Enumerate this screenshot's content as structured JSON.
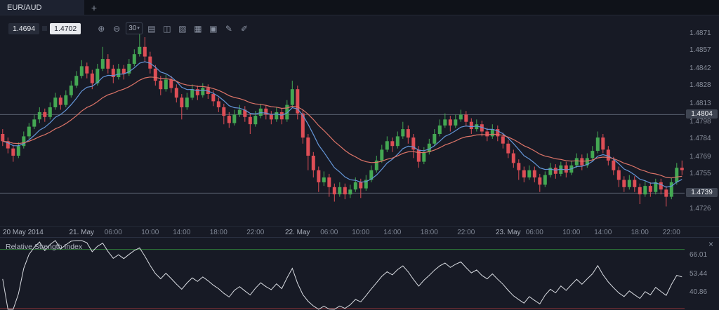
{
  "tab_bar": {
    "active_tab": "EUR/AUD",
    "new_tab_label": "+"
  },
  "quote": {
    "bid": "1.4694",
    "ask": "1.4702"
  },
  "toolbar": {
    "caret": "▾",
    "icons": [
      {
        "name": "zoom-in-icon",
        "glyph": "⊕"
      },
      {
        "name": "zoom-out-icon",
        "glyph": "⊖"
      },
      {
        "name": "timeframe-30-button",
        "glyph": "30",
        "boxed": true
      },
      {
        "name": "bar-chart-style-icon",
        "glyph": "▤"
      },
      {
        "name": "candlestick-style-icon",
        "glyph": "◫"
      },
      {
        "name": "line-chart-style-icon",
        "glyph": "▨"
      },
      {
        "name": "indicators-icon",
        "glyph": "▦"
      },
      {
        "name": "snapshot-icon",
        "glyph": "▣"
      },
      {
        "name": "draw-icon",
        "glyph": "✎"
      },
      {
        "name": "marker-icon",
        "glyph": "✐"
      }
    ]
  },
  "chart_data": {
    "type": "candlestick",
    "symbol": "EUR/AUD",
    "timeframe_minutes": 30,
    "price_range": {
      "top": 1.4886,
      "bottom": 1.4712
    },
    "price_ticks": [
      1.4871,
      1.4857,
      1.4842,
      1.4828,
      1.4813,
      1.4798,
      1.4784,
      1.4769,
      1.4755,
      1.4726
    ],
    "price_lines": [
      1.4804,
      1.4739
    ],
    "colors": {
      "up": "#44a853",
      "down": "#de4e56",
      "level_line": "#5a6270"
    },
    "indicators": {
      "ma_fast": {
        "period": 8,
        "color": "#6496d8"
      },
      "ma_slow": {
        "period": 20,
        "color": "#dd7468"
      }
    },
    "time_ticks": [
      {
        "label": "20 May 2014",
        "i": 0,
        "major": true
      },
      {
        "label": "21. May",
        "i": 15,
        "major": true
      },
      {
        "label": "06:00",
        "i": 21
      },
      {
        "label": "10:00",
        "i": 28
      },
      {
        "label": "14:00",
        "i": 34
      },
      {
        "label": "18:00",
        "i": 41
      },
      {
        "label": "22:00",
        "i": 48
      },
      {
        "label": "22. May",
        "i": 56,
        "major": true
      },
      {
        "label": "06:00",
        "i": 62
      },
      {
        "label": "10:00",
        "i": 68
      },
      {
        "label": "14:00",
        "i": 74
      },
      {
        "label": "18:00",
        "i": 81
      },
      {
        "label": "22:00",
        "i": 88
      },
      {
        "label": "23. May",
        "i": 96,
        "major": true
      },
      {
        "label": "06:00",
        "i": 101
      },
      {
        "label": "10:00",
        "i": 108
      },
      {
        "label": "14:00",
        "i": 114
      },
      {
        "label": "18:00",
        "i": 121
      },
      {
        "label": "22:00",
        "i": 127
      }
    ],
    "candles": [
      [
        1.4788,
        1.4792,
        1.4778,
        1.4782
      ],
      [
        1.4782,
        1.4785,
        1.4772,
        1.4776
      ],
      [
        1.4776,
        1.4779,
        1.4765,
        1.477
      ],
      [
        1.477,
        1.4781,
        1.4768,
        1.4778
      ],
      [
        1.4778,
        1.479,
        1.4776,
        1.4786
      ],
      [
        1.4786,
        1.4797,
        1.4784,
        1.4794
      ],
      [
        1.4794,
        1.4804,
        1.4792,
        1.48
      ],
      [
        1.48,
        1.481,
        1.4797,
        1.4806
      ],
      [
        1.4806,
        1.4809,
        1.4798,
        1.4802
      ],
      [
        1.4802,
        1.4814,
        1.48,
        1.481
      ],
      [
        1.481,
        1.4822,
        1.4808,
        1.4818
      ],
      [
        1.4818,
        1.482,
        1.4808,
        1.4812
      ],
      [
        1.4812,
        1.4824,
        1.481,
        1.482
      ],
      [
        1.482,
        1.4832,
        1.4818,
        1.4828
      ],
      [
        1.4828,
        1.484,
        1.4826,
        1.4836
      ],
      [
        1.4836,
        1.4849,
        1.4834,
        1.4844
      ],
      [
        1.4844,
        1.4847,
        1.4834,
        1.4838
      ],
      [
        1.4838,
        1.4841,
        1.4825,
        1.483
      ],
      [
        1.483,
        1.4846,
        1.4828,
        1.4842
      ],
      [
        1.4842,
        1.486,
        1.484,
        1.485
      ],
      [
        1.485,
        1.4854,
        1.4838,
        1.4842
      ],
      [
        1.4842,
        1.4845,
        1.483,
        1.4835
      ],
      [
        1.4835,
        1.4846,
        1.4833,
        1.4842
      ],
      [
        1.4842,
        1.4845,
        1.4833,
        1.4838
      ],
      [
        1.4838,
        1.485,
        1.4836,
        1.4846
      ],
      [
        1.4846,
        1.4858,
        1.4844,
        1.4854
      ],
      [
        1.4854,
        1.4871,
        1.4852,
        1.486
      ],
      [
        1.486,
        1.4868,
        1.4848,
        1.4852
      ],
      [
        1.4852,
        1.4856,
        1.4838,
        1.4842
      ],
      [
        1.4842,
        1.4845,
        1.4828,
        1.4832
      ],
      [
        1.4832,
        1.4836,
        1.482,
        1.4825
      ],
      [
        1.4825,
        1.4837,
        1.4823,
        1.4833
      ],
      [
        1.4833,
        1.4836,
        1.4822,
        1.4826
      ],
      [
        1.4826,
        1.4829,
        1.4814,
        1.4818
      ],
      [
        1.4818,
        1.4821,
        1.48,
        1.481
      ],
      [
        1.481,
        1.4822,
        1.4808,
        1.4818
      ],
      [
        1.4818,
        1.4829,
        1.4816,
        1.4825
      ],
      [
        1.4825,
        1.4828,
        1.4816,
        1.482
      ],
      [
        1.482,
        1.483,
        1.4818,
        1.4826
      ],
      [
        1.4826,
        1.4829,
        1.4817,
        1.4821
      ],
      [
        1.4821,
        1.4824,
        1.4811,
        1.4815
      ],
      [
        1.4815,
        1.4818,
        1.4806,
        1.481
      ],
      [
        1.481,
        1.4813,
        1.4796,
        1.4803
      ],
      [
        1.4803,
        1.4806,
        1.4793,
        1.4797
      ],
      [
        1.4797,
        1.4808,
        1.4795,
        1.4804
      ],
      [
        1.4804,
        1.4812,
        1.4802,
        1.4808
      ],
      [
        1.4808,
        1.4811,
        1.4798,
        1.4802
      ],
      [
        1.4802,
        1.4805,
        1.4788,
        1.4796
      ],
      [
        1.4796,
        1.4807,
        1.4794,
        1.4803
      ],
      [
        1.4803,
        1.4813,
        1.4801,
        1.4809
      ],
      [
        1.4809,
        1.4812,
        1.48,
        1.4804
      ],
      [
        1.4804,
        1.4807,
        1.4796,
        1.48
      ],
      [
        1.48,
        1.481,
        1.4798,
        1.4806
      ],
      [
        1.4806,
        1.4809,
        1.4796,
        1.48
      ],
      [
        1.48,
        1.4816,
        1.4798,
        1.4812
      ],
      [
        1.4812,
        1.4832,
        1.481,
        1.4825
      ],
      [
        1.4825,
        1.4828,
        1.48,
        1.4805
      ],
      [
        1.4805,
        1.4808,
        1.478,
        1.4785
      ],
      [
        1.4785,
        1.4788,
        1.4758,
        1.477
      ],
      [
        1.477,
        1.4773,
        1.4752,
        1.4758
      ],
      [
        1.4758,
        1.4761,
        1.474,
        1.4748
      ],
      [
        1.4748,
        1.4757,
        1.4745,
        1.4752
      ],
      [
        1.4752,
        1.4755,
        1.4736,
        1.4744
      ],
      [
        1.4744,
        1.4747,
        1.4732,
        1.4738
      ],
      [
        1.4738,
        1.4748,
        1.4736,
        1.4744
      ],
      [
        1.4744,
        1.4747,
        1.4734,
        1.4738
      ],
      [
        1.4738,
        1.4746,
        1.4735,
        1.4742
      ],
      [
        1.4742,
        1.4752,
        1.474,
        1.4748
      ],
      [
        1.4748,
        1.4751,
        1.4735,
        1.4743
      ],
      [
        1.4743,
        1.4754,
        1.4741,
        1.475
      ],
      [
        1.475,
        1.4762,
        1.4748,
        1.4758
      ],
      [
        1.4758,
        1.477,
        1.4756,
        1.4766
      ],
      [
        1.4766,
        1.4779,
        1.4764,
        1.4775
      ],
      [
        1.4775,
        1.4786,
        1.4773,
        1.4782
      ],
      [
        1.4782,
        1.4785,
        1.4773,
        1.4778
      ],
      [
        1.4778,
        1.479,
        1.4776,
        1.4786
      ],
      [
        1.4786,
        1.4798,
        1.4784,
        1.4792
      ],
      [
        1.4792,
        1.4795,
        1.478,
        1.4785
      ],
      [
        1.4785,
        1.4788,
        1.4768,
        1.4775
      ],
      [
        1.4775,
        1.4778,
        1.476,
        1.4765
      ],
      [
        1.4765,
        1.4777,
        1.4763,
        1.4773
      ],
      [
        1.4773,
        1.4784,
        1.4771,
        1.478
      ],
      [
        1.478,
        1.4792,
        1.4778,
        1.4788
      ],
      [
        1.4788,
        1.48,
        1.4786,
        1.4795
      ],
      [
        1.4795,
        1.4805,
        1.4793,
        1.48
      ],
      [
        1.48,
        1.4803,
        1.479,
        1.4795
      ],
      [
        1.4795,
        1.4804,
        1.4793,
        1.48
      ],
      [
        1.48,
        1.4808,
        1.4798,
        1.4804
      ],
      [
        1.4804,
        1.4807,
        1.4794,
        1.4798
      ],
      [
        1.4798,
        1.4801,
        1.4788,
        1.4792
      ],
      [
        1.4792,
        1.48,
        1.479,
        1.4796
      ],
      [
        1.4796,
        1.4799,
        1.4786,
        1.479
      ],
      [
        1.479,
        1.4793,
        1.4782,
        1.4786
      ],
      [
        1.4786,
        1.4796,
        1.4784,
        1.4792
      ],
      [
        1.4792,
        1.4795,
        1.4782,
        1.4786
      ],
      [
        1.4786,
        1.4789,
        1.4776,
        1.478
      ],
      [
        1.478,
        1.4783,
        1.4768,
        1.4772
      ],
      [
        1.4772,
        1.4775,
        1.476,
        1.4764
      ],
      [
        1.4764,
        1.4767,
        1.475,
        1.4758
      ],
      [
        1.4758,
        1.4761,
        1.4748,
        1.4752
      ],
      [
        1.4752,
        1.4762,
        1.475,
        1.4758
      ],
      [
        1.4758,
        1.4761,
        1.4748,
        1.4752
      ],
      [
        1.4752,
        1.4755,
        1.474,
        1.4746
      ],
      [
        1.4746,
        1.4757,
        1.4744,
        1.4754
      ],
      [
        1.4754,
        1.4764,
        1.4752,
        1.476
      ],
      [
        1.476,
        1.4763,
        1.4751,
        1.4755
      ],
      [
        1.4755,
        1.4765,
        1.4753,
        1.4762
      ],
      [
        1.4762,
        1.4765,
        1.4752,
        1.4756
      ],
      [
        1.4756,
        1.4766,
        1.4754,
        1.4762
      ],
      [
        1.4762,
        1.4772,
        1.476,
        1.4768
      ],
      [
        1.4768,
        1.4771,
        1.4758,
        1.4762
      ],
      [
        1.4762,
        1.4772,
        1.476,
        1.4768
      ],
      [
        1.4768,
        1.4778,
        1.4766,
        1.4774
      ],
      [
        1.4774,
        1.479,
        1.4772,
        1.4785
      ],
      [
        1.4785,
        1.4788,
        1.4772,
        1.4775
      ],
      [
        1.4775,
        1.4778,
        1.4762,
        1.4766
      ],
      [
        1.4766,
        1.4769,
        1.4754,
        1.4758
      ],
      [
        1.4758,
        1.4761,
        1.4744,
        1.475
      ],
      [
        1.475,
        1.4753,
        1.474,
        1.4744
      ],
      [
        1.4744,
        1.4754,
        1.4742,
        1.475
      ],
      [
        1.475,
        1.4753,
        1.474,
        1.4744
      ],
      [
        1.4744,
        1.4747,
        1.473,
        1.4738
      ],
      [
        1.4738,
        1.4749,
        1.4736,
        1.4745
      ],
      [
        1.4745,
        1.4748,
        1.4736,
        1.474
      ],
      [
        1.474,
        1.4751,
        1.4738,
        1.4748
      ],
      [
        1.4748,
        1.4751,
        1.4738,
        1.4742
      ],
      [
        1.4742,
        1.4745,
        1.4728,
        1.4736
      ],
      [
        1.4736,
        1.4752,
        1.4734,
        1.4748
      ],
      [
        1.4748,
        1.4764,
        1.4746,
        1.476
      ],
      [
        1.476,
        1.4766,
        1.4754,
        1.4758
      ]
    ]
  },
  "rsi": {
    "title": "Relative Strength Index",
    "close_label": "×",
    "period": 14,
    "range": [
      29.5,
      76
    ],
    "ticks": [
      66.01,
      53.44,
      40.86
    ],
    "levels": [
      {
        "value": 70,
        "color": "#2f7d3a"
      },
      {
        "value": 30,
        "color": "#8a3338"
      }
    ],
    "line_color": "#d9dce2"
  }
}
